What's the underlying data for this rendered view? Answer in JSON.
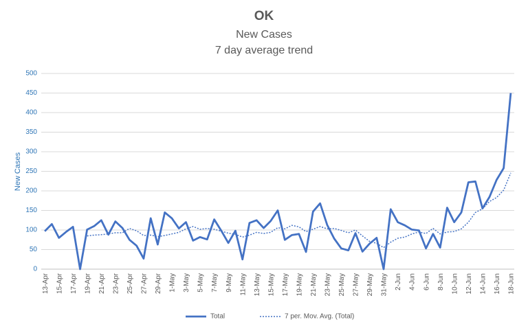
{
  "chart_data": {
    "type": "line",
    "title": "OK",
    "subtitle": "New Cases",
    "subtitle2": "7 day average trend",
    "y_label": "New Cases",
    "categories": [
      "13-Apr",
      null,
      "15-Apr",
      null,
      "17-Apr",
      null,
      "19-Apr",
      null,
      "21-Apr",
      null,
      "23-Apr",
      null,
      "25-Apr",
      null,
      "27-Apr",
      null,
      "29-Apr",
      null,
      "1-May",
      null,
      "3-May",
      null,
      "5-May",
      null,
      "7-May",
      null,
      "9-May",
      null,
      "11-May",
      null,
      "13-May",
      null,
      "15-May",
      null,
      "17-May",
      null,
      "19-May",
      null,
      "21-May",
      null,
      "23-May",
      null,
      "25-May",
      null,
      "27-May",
      null,
      "29-May",
      null,
      "31-May",
      null,
      "2-Jun",
      null,
      "4-Jun",
      null,
      "6-Jun",
      null,
      "8-Jun",
      null,
      "10-Jun",
      null,
      "12-Jun",
      null,
      "14-Jun",
      null,
      "16-Jun",
      null,
      "18-Jun"
    ],
    "series": [
      {
        "name": "Total",
        "color": "#4472c4",
        "dash": false,
        "values": [
          97,
          115,
          80,
          95,
          108,
          0,
          101,
          110,
          125,
          88,
          122,
          105,
          75,
          60,
          27,
          130,
          63,
          145,
          130,
          104,
          120,
          73,
          82,
          76,
          127,
          98,
          67,
          98,
          25,
          118,
          125,
          105,
          123,
          150,
          75,
          87,
          90,
          44,
          147,
          168,
          113,
          78,
          53,
          48,
          92,
          45,
          65,
          80,
          0,
          153,
          120,
          112,
          101,
          99,
          53,
          90,
          55,
          157,
          120,
          145,
          222,
          224,
          155,
          185,
          228,
          258,
          450
        ]
      },
      {
        "name": "7 per. Mov. Avg. (Total)",
        "color": "#4472c4",
        "dash": true,
        "values": [
          null,
          null,
          null,
          null,
          null,
          null,
          85,
          87,
          88,
          90,
          93,
          93,
          104,
          98,
          86,
          87,
          83,
          86,
          90,
          94,
          103,
          109,
          102,
          104,
          102,
          97,
          92,
          89,
          82,
          87,
          94,
          91,
          94,
          106,
          103,
          112,
          108,
          96,
          102,
          109,
          103,
          104,
          99,
          93,
          100,
          85,
          71,
          66,
          55,
          69,
          79,
          82,
          90,
          95,
          91,
          104,
          90,
          95,
          96,
          103,
          120,
          145,
          154,
          173,
          183,
          202,
          246
        ]
      }
    ],
    "ylim": [
      0,
      500
    ],
    "yticks": [
      0,
      50,
      100,
      150,
      200,
      250,
      300,
      350,
      400,
      450,
      500
    ],
    "grid": true,
    "legend": "bottom"
  }
}
